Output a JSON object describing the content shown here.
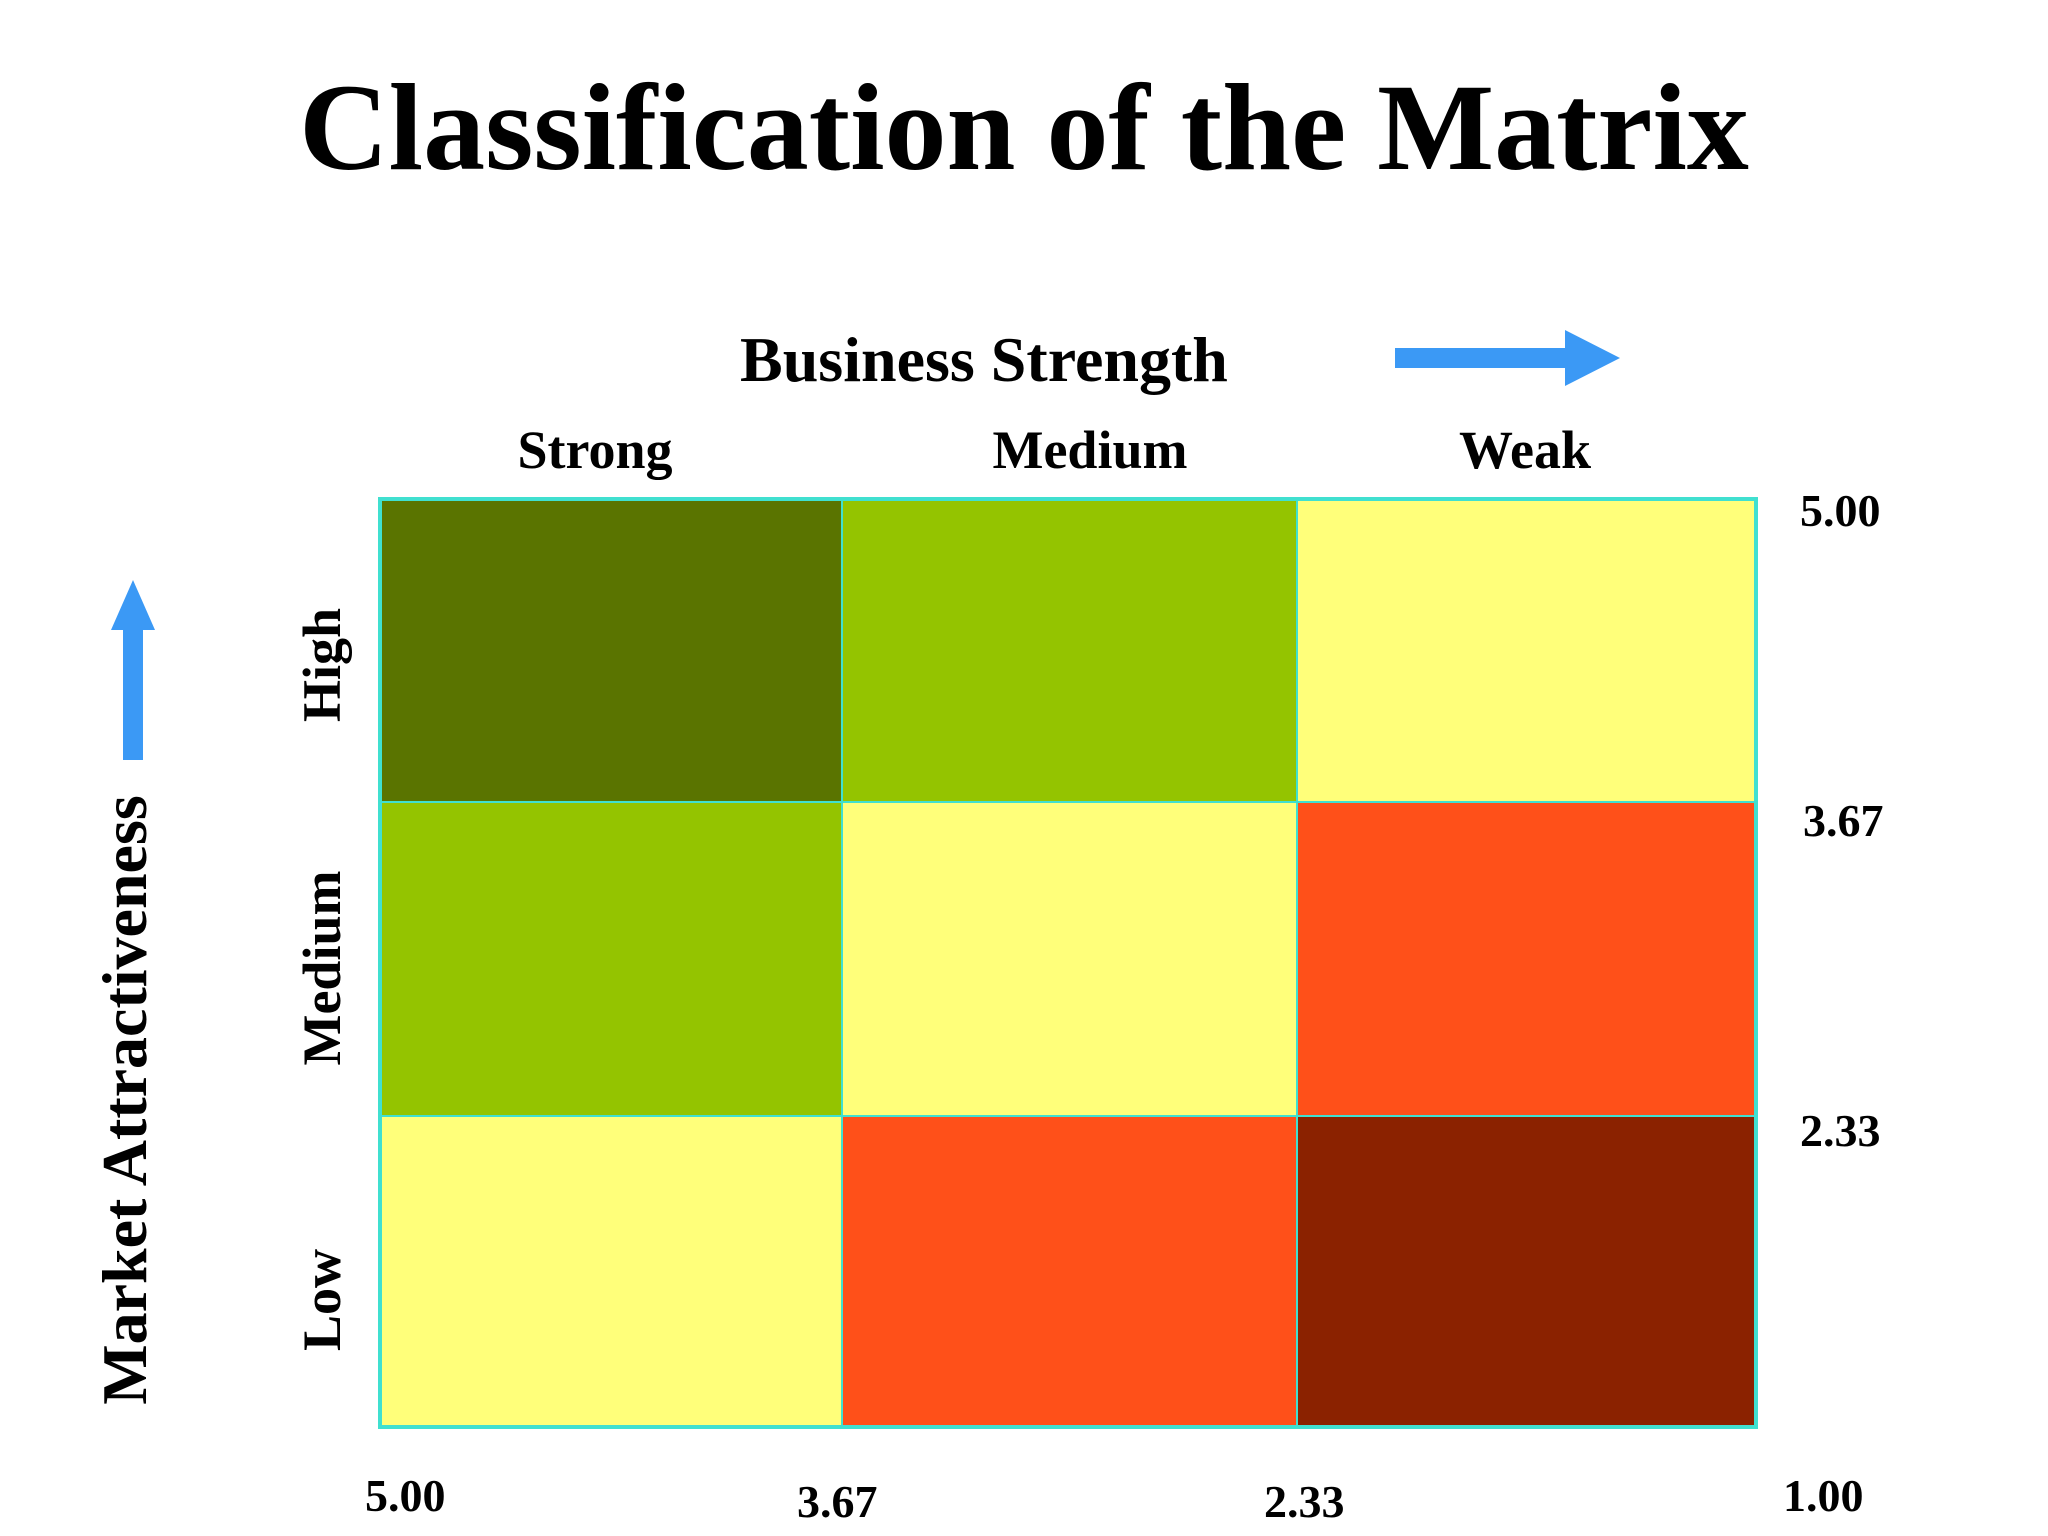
{
  "title": "Classification of the Matrix",
  "x_axis": {
    "title": "Business Strength",
    "arrow_color": "#3B99F5",
    "columns": [
      "Strong",
      "Medium",
      "Weak"
    ],
    "ticks": [
      "5.00",
      "3.67",
      "2.33",
      "1.00"
    ]
  },
  "y_axis": {
    "title": "Market Attractiveness",
    "arrow_color": "#3B99F5",
    "rows": [
      "High",
      "Medium",
      "Low"
    ],
    "ticks": [
      "5.00",
      "3.67",
      "2.33"
    ]
  },
  "grid_line_color": "#40E0D0",
  "cells": [
    [
      "#5A7400",
      "#94C400",
      "#FFFF7A"
    ],
    [
      "#94C400",
      "#FFFF7A",
      "#FF5019"
    ],
    [
      "#FFFF7A",
      "#FF5019",
      "#8B2200"
    ]
  ]
}
